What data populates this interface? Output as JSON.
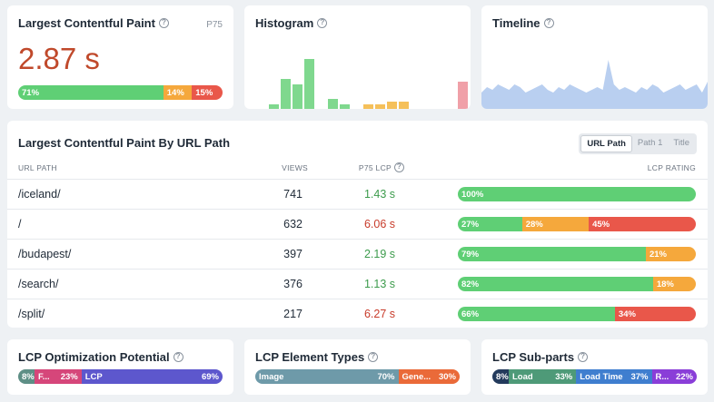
{
  "lcp_card": {
    "title": "Largest Contentful Paint",
    "percentile": "P75",
    "value": "2.87 s",
    "rating": [
      {
        "label": "71%",
        "pct": 71,
        "color": "#5fcf75"
      },
      {
        "label": "14%",
        "pct": 14,
        "color": "#f5a83c"
      },
      {
        "label": "15%",
        "pct": 15,
        "color": "#e9574a"
      }
    ]
  },
  "histogram": {
    "title": "Histogram",
    "bars": [
      {
        "value": 0.1,
        "color": "#7fd88e"
      },
      {
        "value": 0.6,
        "color": "#7fd88e"
      },
      {
        "value": 0.5,
        "color": "#7fd88e"
      },
      {
        "value": 1.0,
        "color": "#7fd88e"
      },
      {
        "value": 0,
        "color": "#7fd88e"
      },
      {
        "value": 0.2,
        "color": "#7fd88e"
      },
      {
        "value": 0.1,
        "color": "#7fd88e"
      },
      {
        "value": 0,
        "color": "#f5c05a"
      },
      {
        "value": 0.1,
        "color": "#f5c05a"
      },
      {
        "value": 0.1,
        "color": "#f5c05a"
      },
      {
        "value": 0.15,
        "color": "#f5c05a"
      },
      {
        "value": 0.15,
        "color": "#f5c05a"
      },
      {
        "value": 0,
        "color": "#f0a0a8"
      },
      {
        "value": 0,
        "color": "#f0a0a8"
      },
      {
        "value": 0,
        "color": "#f0a0a8"
      },
      {
        "value": 0,
        "color": "#f0a0a8"
      },
      {
        "value": 0.55,
        "color": "#f0a0a8"
      }
    ]
  },
  "timeline": {
    "title": "Timeline",
    "series": [
      0.3,
      0.4,
      0.35,
      0.45,
      0.4,
      0.35,
      0.45,
      0.4,
      0.3,
      0.35,
      0.4,
      0.45,
      0.35,
      0.3,
      0.4,
      0.35,
      0.45,
      0.4,
      0.35,
      0.3,
      0.35,
      0.4,
      0.35,
      0.9,
      0.45,
      0.35,
      0.4,
      0.35,
      0.3,
      0.4,
      0.35,
      0.45,
      0.4,
      0.3,
      0.35,
      0.4,
      0.45,
      0.35,
      0.4,
      0.45,
      0.3,
      0.5
    ]
  },
  "table": {
    "title": "Largest Contentful Paint By URL Path",
    "toggle": [
      "URL Path",
      "Path 1",
      "Title"
    ],
    "active_toggle": "URL Path",
    "headers": {
      "path": "URL PATH",
      "views": "VIEWS",
      "lcp": "P75 LCP",
      "rating": "LCP RATING"
    },
    "rows": [
      {
        "path": "/iceland/",
        "views": "741",
        "lcp": "1.43 s",
        "status": "good",
        "rating": [
          {
            "label": "100%",
            "pct": 100,
            "color": "#5fcf75"
          }
        ]
      },
      {
        "path": "/",
        "views": "632",
        "lcp": "6.06 s",
        "status": "bad",
        "rating": [
          {
            "label": "27%",
            "pct": 27,
            "color": "#5fcf75"
          },
          {
            "label": "28%",
            "pct": 28,
            "color": "#f5a83c"
          },
          {
            "label": "45%",
            "pct": 45,
            "color": "#e9574a"
          }
        ]
      },
      {
        "path": "/budapest/",
        "views": "397",
        "lcp": "2.19 s",
        "status": "good",
        "rating": [
          {
            "label": "79%",
            "pct": 79,
            "color": "#5fcf75"
          },
          {
            "label": "21%",
            "pct": 21,
            "color": "#f5a83c"
          }
        ]
      },
      {
        "path": "/search/",
        "views": "376",
        "lcp": "1.13 s",
        "status": "good",
        "rating": [
          {
            "label": "82%",
            "pct": 82,
            "color": "#5fcf75"
          },
          {
            "label": "18%",
            "pct": 18,
            "color": "#f5a83c"
          }
        ]
      },
      {
        "path": "/split/",
        "views": "217",
        "lcp": "6.27 s",
        "status": "bad",
        "rating": [
          {
            "label": "66%",
            "pct": 66,
            "color": "#5fcf75"
          },
          {
            "label": "34%",
            "pct": 34,
            "color": "#e9574a"
          }
        ]
      }
    ]
  },
  "optimization": {
    "title": "LCP Optimization Potential",
    "segments": [
      {
        "label": "8%",
        "value": "",
        "pct": 8,
        "color": "#5e8f86"
      },
      {
        "label": "F...",
        "value": "23%",
        "pct": 23,
        "color": "#d6467a"
      },
      {
        "label": "LCP",
        "value": "69%",
        "pct": 69,
        "color": "#5d57cd"
      }
    ]
  },
  "element_types": {
    "title": "LCP Element Types",
    "segments": [
      {
        "label": "Image",
        "value": "70%",
        "pct": 70,
        "color": "#6e9aa9"
      },
      {
        "label": "Gene...",
        "value": "30%",
        "pct": 30,
        "color": "#ea6a39"
      }
    ]
  },
  "subparts": {
    "title": "LCP Sub-parts",
    "segments": [
      {
        "label": "8%",
        "value": "",
        "pct": 8,
        "color": "#233a5c"
      },
      {
        "label": "Load",
        "value": "33%",
        "pct": 33,
        "color": "#4e9a78"
      },
      {
        "label": "Load Time",
        "value": "37%",
        "pct": 37,
        "color": "#3f7ecf"
      },
      {
        "label": "R...",
        "value": "22%",
        "pct": 22,
        "color": "#8a3ed8"
      }
    ]
  }
}
